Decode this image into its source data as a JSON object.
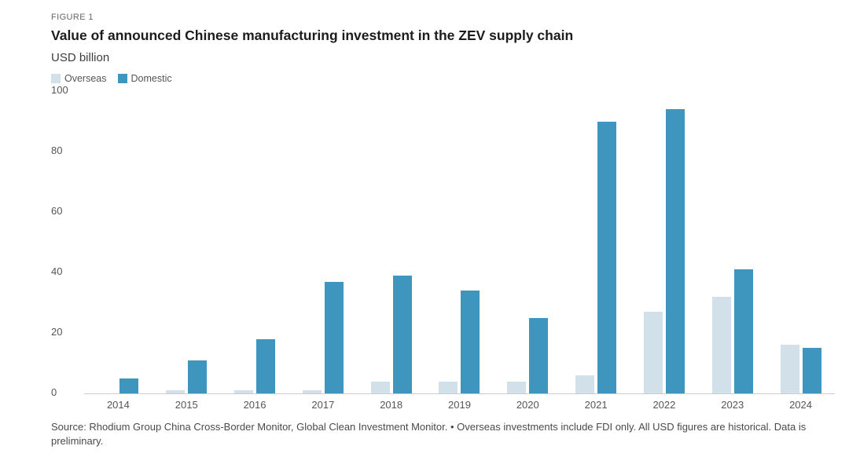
{
  "figure_label": "FIGURE 1",
  "title": "Value of announced Chinese manufacturing investment in the ZEV supply chain",
  "unit_label": "USD billion",
  "legend": [
    {
      "label": "Overseas",
      "color": "#d2e0e9"
    },
    {
      "label": "Domestic",
      "color": "#3e96bf"
    }
  ],
  "source_note": "Source: Rhodium Group China Cross-Border Monitor, Global Clean Investment Monitor. • Overseas investments include FDI only. All USD figures are historical. Data is preliminary.",
  "chart_data": {
    "type": "bar",
    "title": "Value of announced Chinese manufacturing investment in the ZEV supply chain",
    "xlabel": "",
    "ylabel": "USD billion",
    "ylim": [
      0,
      100
    ],
    "yticks": [
      0,
      20,
      40,
      60,
      80,
      100
    ],
    "grid": false,
    "legend_position": "top-left",
    "categories": [
      "2014",
      "2015",
      "2016",
      "2017",
      "2018",
      "2019",
      "2020",
      "2021",
      "2022",
      "2023",
      "2024"
    ],
    "series": [
      {
        "name": "Overseas",
        "color": "#d2e0e9",
        "values": [
          0,
          1,
          1,
          1,
          4,
          4,
          4,
          6,
          27,
          32,
          16
        ]
      },
      {
        "name": "Domestic",
        "color": "#3e96bf",
        "values": [
          5,
          11,
          18,
          37,
          39,
          34,
          25,
          90,
          94,
          41,
          15
        ]
      }
    ]
  }
}
